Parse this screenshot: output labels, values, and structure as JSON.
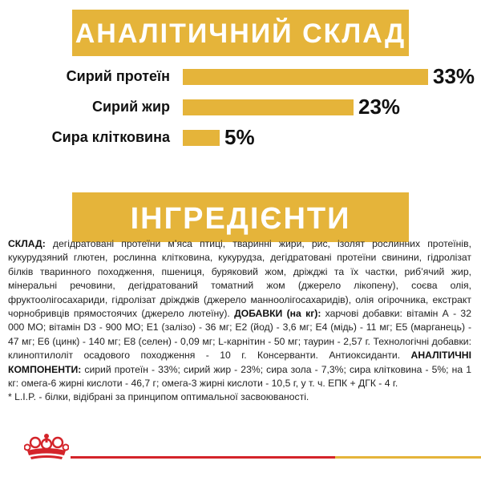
{
  "analytical": {
    "title": "АНАЛІТИЧНИЙ СКЛАД",
    "rows": [
      {
        "label": "Сирий протеїн",
        "value": "33%",
        "percent": 33
      },
      {
        "label": "Сирий жир",
        "value": "23%",
        "percent": 23
      },
      {
        "label": "Сира клітковина",
        "value": "5%",
        "percent": 5
      }
    ]
  },
  "ingredients": {
    "title": "ІНГРЕДІЄНТИ",
    "composition_heading": "СКЛАД:",
    "composition_text": " дегідратовані протеїни м’яса птиці, тваринні жири, рис, ізолят рослинних протеїнів, кукурудзяний глютен, рослинна клітковина, кукурудза, дегідратовані протеїни свинини, гідролізат білків тваринного походження, пшениця, буряковий жом, дріжджі та їх частки, риб’ячий жир, мінеральні речовини, дегідратований томатний жом (джерело лікопену), соєва олія, фруктоолігосахариди, гідролізат дріжджів (джерело манноолігосахаридів), олія огірочника, екстракт чорнобривців прямостоячих (джерело лютеїну). ",
    "additives_heading": "ДОБАВКИ (на кг):",
    "additives_text": " харчові добавки: вітамін А - 32 000 МО; вітамін D3 - 900 МО; Е1 (залізо) - 36 мг; Е2 (йод) - 3,6 мг; Е4 (мідь) - 11 мг; Е5 (марганець) - 47 мг; Е6 (цинк) - 140 мг; Е8 (селен) - 0,09 мг; L-карнітин - 50 мг; таурин - 2,57 г. Технологічні добавки: клинoптилоліт осадового походження - 10 г. Консерванти. Антиоксиданти. ",
    "components_heading": "АНАЛІТИЧНІ КОМПОНЕНТИ:",
    "components_text": " сирий протеїн - 33%; сирий жир - 23%; сира зола - 7,3%; сира клітковина - 5%; на 1 кг: омега-6 жирні кислоти - 46,7 г; омега-3 жирні кислоти - 10,5 г, у т. ч. ЕПК + ДГК - 4 г.",
    "note": "* L.I.P. - білки, відібрані за принципом оптимальної засвоюваності."
  },
  "colors": {
    "accent_gold": "#e5b43a",
    "brand_red": "#d4242a",
    "text": "#111111"
  },
  "icons": {
    "logo": "royal-crown-logo"
  }
}
